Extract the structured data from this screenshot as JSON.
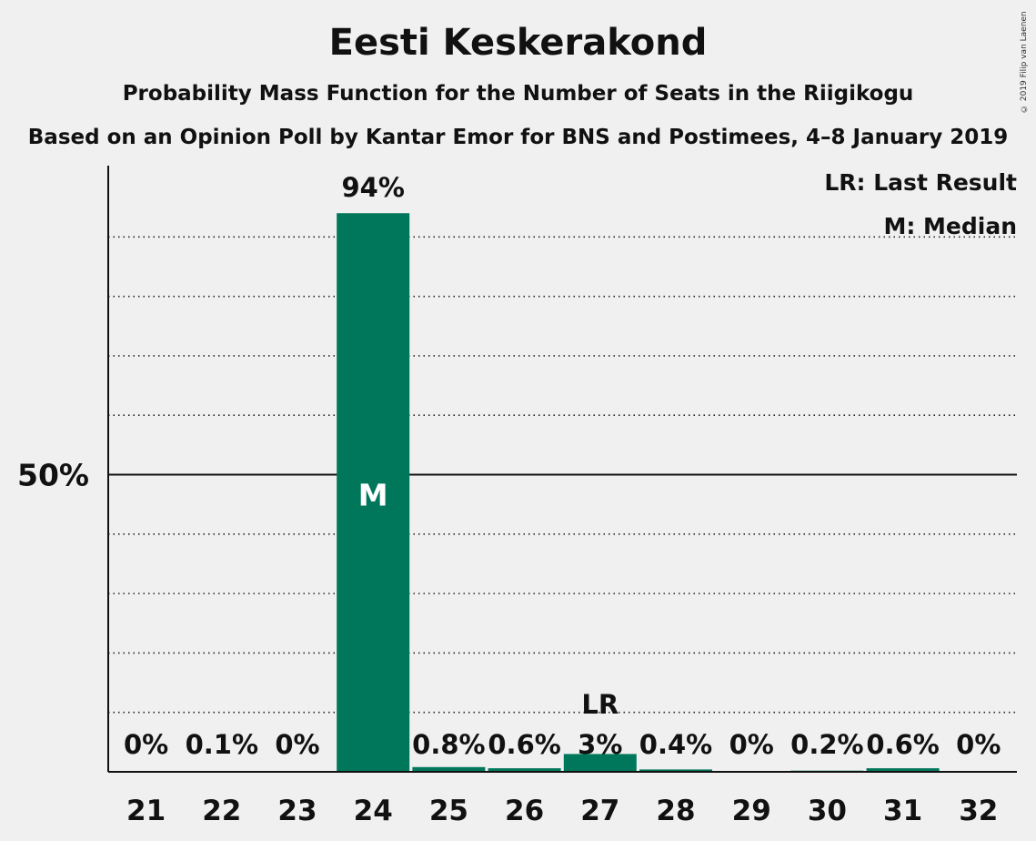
{
  "title": "Eesti Keskerakond",
  "subtitle": "Probability Mass Function for the Number of Seats in the Riigikogu",
  "subtitle2": "Based on an Opinion Poll by Kantar Emor for BNS and Postimees, 4–8 January 2019",
  "copyright": "© 2019 Filip van Laenen",
  "legend": {
    "last_result": "LR: Last Result",
    "median": "M: Median"
  },
  "colors": {
    "bar": "#00765a",
    "background": "#f0f0f0",
    "text": "#111111"
  },
  "chart_data": {
    "type": "bar",
    "categories": [
      "21",
      "22",
      "23",
      "24",
      "25",
      "26",
      "27",
      "28",
      "29",
      "30",
      "31",
      "32"
    ],
    "values": [
      0,
      0.1,
      0,
      94,
      0.8,
      0.6,
      3,
      0.4,
      0,
      0.2,
      0.6,
      0
    ],
    "value_labels": [
      "0%",
      "0.1%",
      "0%",
      "94%",
      "0.8%",
      "0.6%",
      "3%",
      "0.4%",
      "0%",
      "0.2%",
      "0.6%",
      "0%"
    ],
    "ylim": [
      0,
      102
    ],
    "ytick_labels": [
      {
        "value": 50,
        "label": "50%"
      }
    ],
    "gridlines": [
      10,
      20,
      30,
      40,
      60,
      70,
      80,
      90
    ],
    "markers": [
      {
        "category": "24",
        "text": "M",
        "inside": true
      },
      {
        "category": "27",
        "text": "LR",
        "inside": false
      }
    ],
    "legend_position": "top-right"
  }
}
